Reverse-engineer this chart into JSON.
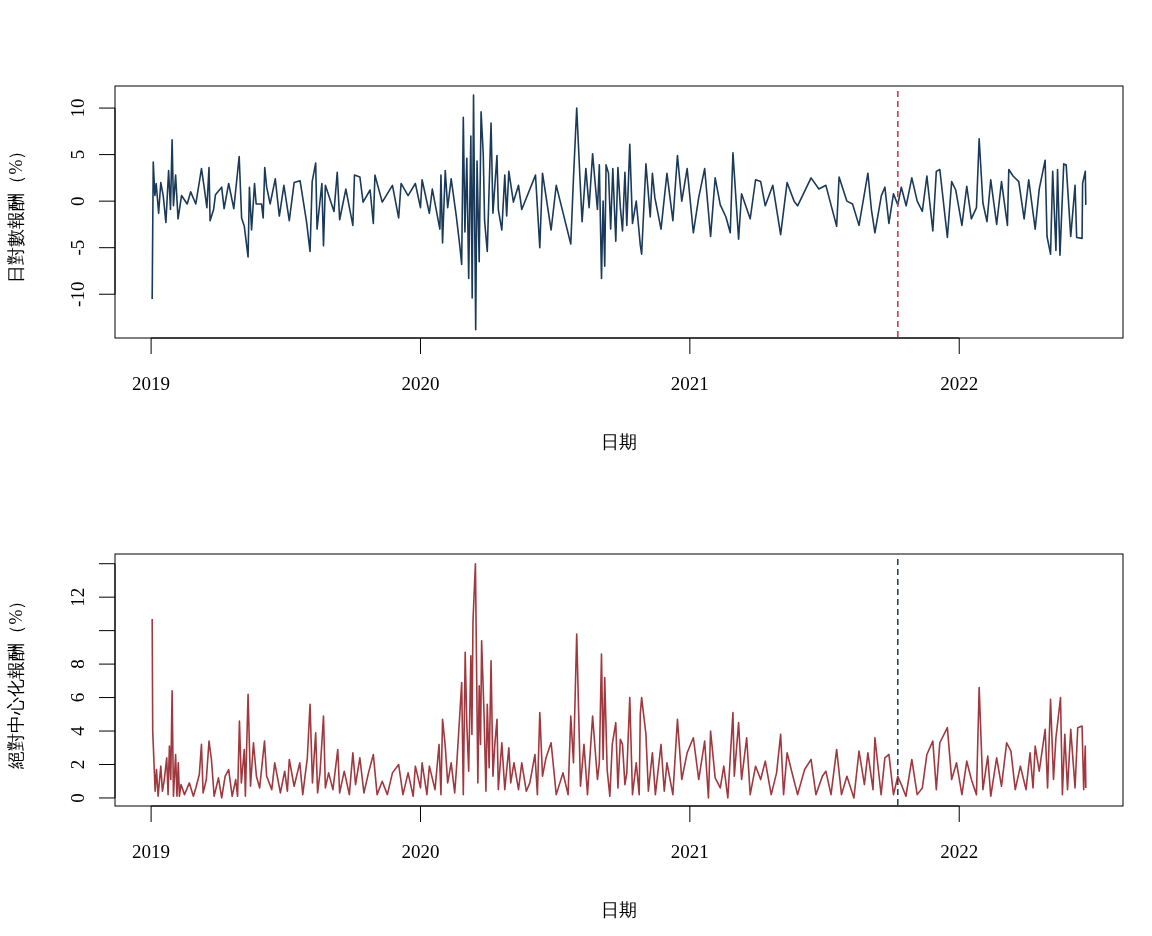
{
  "chart_data": [
    {
      "type": "line",
      "xlabel": "日期",
      "ylabel": "日對數報酬（%）",
      "xlim": [
        2018.866,
        2022.608
      ],
      "xticks": [
        2019,
        2020,
        2021,
        2022
      ],
      "ylim": [
        -14.7,
        12.37
      ],
      "yticks": [
        -10,
        -5,
        0,
        5,
        10
      ],
      "x": [
        2019.004,
        2019.008,
        2019.014,
        2019.019,
        2019.028,
        2019.036,
        2019.045,
        2019.055,
        2019.065,
        2019.072,
        2019.078,
        2019.083,
        2019.091,
        2019.1,
        2019.113,
        2019.134,
        2019.147,
        2019.166,
        2019.187,
        2019.198,
        2019.207,
        2019.215,
        2019.219,
        2019.232,
        2019.239,
        2019.262,
        2019.271,
        2019.288,
        2019.307,
        2019.327,
        2019.336,
        2019.346,
        2019.36,
        2019.365,
        2019.373,
        2019.384,
        2019.39,
        2019.41,
        2019.416,
        2019.422,
        2019.429,
        2019.442,
        2019.461,
        2019.476,
        2019.493,
        2019.513,
        2019.531,
        2019.553,
        2019.577,
        2019.59,
        2019.598,
        2019.611,
        2019.616,
        2019.634,
        2019.64,
        2019.647,
        2019.679,
        2019.691,
        2019.7,
        2019.723,
        2019.749,
        2019.755,
        2019.775,
        2019.787,
        2019.813,
        2019.825,
        2019.831,
        2019.858,
        2019.896,
        2019.919,
        2019.928,
        2019.954,
        2019.981,
        2020.0,
        2020.006,
        2020.033,
        2020.044,
        2020.072,
        2020.076,
        2020.082,
        2020.092,
        2020.101,
        2020.114,
        2020.133,
        2020.146,
        2020.153,
        2020.159,
        2020.165,
        2020.172,
        2020.179,
        2020.187,
        2020.192,
        2020.197,
        2020.205,
        2020.21,
        2020.218,
        2020.225,
        2020.233,
        2020.238,
        2020.248,
        2020.262,
        2020.269,
        2020.284,
        2020.289,
        2020.302,
        2020.313,
        2020.32,
        2020.328,
        2020.345,
        2020.364,
        2020.376,
        2020.427,
        2020.443,
        2020.453,
        2020.485,
        2020.504,
        2020.558,
        2020.568,
        2020.58,
        2020.594,
        2020.6,
        2020.614,
        2020.626,
        2020.639,
        2020.657,
        2020.664,
        2020.672,
        2020.678,
        2020.684,
        2020.689,
        2020.698,
        2020.706,
        2020.714,
        2020.725,
        2020.733,
        2020.742,
        2020.75,
        2020.759,
        2020.766,
        2020.777,
        2020.787,
        2020.801,
        2020.816,
        2020.821,
        2020.837,
        2020.853,
        2020.861,
        2020.87,
        2020.893,
        2020.915,
        2020.937,
        2020.954,
        2020.97,
        2020.99,
        2021.013,
        2021.033,
        2021.055,
        2021.077,
        2021.094,
        2021.113,
        2021.134,
        2021.15,
        2021.16,
        2021.181,
        2021.192,
        2021.224,
        2021.244,
        2021.263,
        2021.28,
        2021.308,
        2021.337,
        2021.361,
        2021.387,
        2021.4,
        2021.45,
        2021.479,
        2021.505,
        2021.524,
        2021.545,
        2021.554,
        2021.583,
        2021.604,
        2021.628,
        2021.661,
        2021.674,
        2021.687,
        2021.711,
        2021.724,
        2021.739,
        2021.756,
        2021.772,
        2021.785,
        2021.803,
        2021.824,
        2021.844,
        2021.863,
        2021.88,
        2021.902,
        2021.915,
        2021.928,
        2021.956,
        2021.972,
        2021.987,
        2022.01,
        2022.028,
        2022.045,
        2022.064,
        2022.074,
        2022.088,
        2022.103,
        2022.117,
        2022.139,
        2022.157,
        2022.179,
        2022.184,
        2022.2,
        2022.221,
        2022.241,
        2022.258,
        2022.282,
        2022.297,
        2022.319,
        2022.326,
        2022.339,
        2022.347,
        2022.359,
        2022.365,
        2022.374,
        2022.388,
        2022.397,
        2022.414,
        2022.43,
        2022.436,
        2022.456,
        2022.458,
        2022.468,
        2022.47
      ],
      "series": [
        {
          "color": "#1b3a5a",
          "values": [
            -10.5,
            4.2,
            0.6,
            1.9,
            -1.3,
            2.0,
            0.6,
            -2.3,
            3.3,
            -0.9,
            6.6,
            -0.5,
            2.8,
            -1.9,
            0.6,
            -0.3,
            1.0,
            -0.3,
            3.5,
            1.3,
            -0.7,
            3.6,
            -2.1,
            -0.9,
            0.7,
            1.5,
            -0.8,
            1.9,
            -0.8,
            4.8,
            -1.8,
            -2.7,
            -6.0,
            1.5,
            -3.1,
            1.9,
            -0.3,
            -0.3,
            -1.8,
            3.6,
            1.5,
            -0.3,
            2.4,
            -1.6,
            1.7,
            -2.1,
            2.0,
            2.2,
            -2.2,
            -5.4,
            2.1,
            4.1,
            -3.0,
            1.9,
            -4.8,
            1.7,
            -1.1,
            3.1,
            -2.0,
            1.3,
            -2.6,
            2.8,
            2.6,
            -0.1,
            1.2,
            -2.4,
            2.8,
            -0.1,
            1.7,
            -1.8,
            1.9,
            0.6,
            1.9,
            -0.7,
            2.3,
            -1.3,
            1.3,
            -3.0,
            2.8,
            -4.5,
            3.3,
            -0.7,
            2.4,
            -1.6,
            -4.8,
            -6.8,
            9.0,
            -3.3,
            4.6,
            -8.3,
            7.0,
            -10.4,
            11.4,
            -13.8,
            4.3,
            -6.5,
            9.6,
            5.1,
            -2.1,
            -5.4,
            8.4,
            -1.3,
            4.9,
            -0.9,
            -3.1,
            2.8,
            -1.6,
            3.2,
            -0.1,
            1.7,
            -0.9,
            2.8,
            -5.0,
            3.0,
            -3.1,
            1.7,
            -4.6,
            2.5,
            10.0,
            1.3,
            -2.2,
            3.5,
            -0.7,
            5.1,
            -0.9,
            3.9,
            -8.3,
            0.0,
            -7.0,
            3.9,
            3.0,
            -3.0,
            3.5,
            -4.3,
            3.6,
            -0.7,
            -3.2,
            3.1,
            -2.6,
            6.1,
            -2.4,
            0.0,
            -4.7,
            -5.7,
            4.0,
            -1.7,
            3.0,
            0.4,
            -3.0,
            3.0,
            -2.1,
            4.9,
            0.0,
            3.5,
            -3.4,
            0.4,
            3.5,
            -3.8,
            2.5,
            -0.4,
            -1.7,
            -3.4,
            5.2,
            -4.1,
            0.8,
            -1.9,
            2.3,
            2.1,
            -0.5,
            1.7,
            -3.6,
            2.0,
            0.0,
            -0.5,
            2.5,
            1.3,
            1.7,
            -0.4,
            -2.7,
            2.6,
            0.0,
            -0.3,
            -2.6,
            3.0,
            -0.9,
            -3.4,
            0.6,
            1.5,
            -2.4,
            0.8,
            -0.4,
            1.5,
            -0.5,
            2.5,
            0.0,
            -1.1,
            2.7,
            -3.2,
            3.2,
            3.4,
            -3.9,
            2.1,
            1.2,
            -2.6,
            1.6,
            -1.9,
            -0.7,
            6.7,
            -0.2,
            -2.2,
            2.3,
            -2.5,
            2.1,
            -2.6,
            3.4,
            2.7,
            2.1,
            -1.9,
            2.3,
            -3.0,
            1.3,
            4.4,
            -3.8,
            -5.7,
            3.2,
            -5.3,
            3.4,
            -5.8,
            4.0,
            3.9,
            -3.8,
            1.7,
            -3.9,
            -4.0,
            1.9,
            3.2,
            -0.4
          ]
        }
      ],
      "ref_lines": [
        {
          "axis": "x",
          "value": 2021.772,
          "color": "#c8313b",
          "line_style": "dashed"
        }
      ]
    },
    {
      "type": "line",
      "xlabel": "日期",
      "ylabel": "絕對中心化報酬（%）",
      "xlim": [
        2018.866,
        2022.608
      ],
      "xticks": [
        2019,
        2020,
        2021,
        2022
      ],
      "ylim": [
        -0.48,
        14.58
      ],
      "yticks": [
        0,
        2,
        4,
        6,
        8,
        {
          "value": 10,
          "label": null
        },
        12,
        {
          "value": 14,
          "label": null
        }
      ],
      "x": [
        2019.004,
        2019.006,
        2019.015,
        2019.02,
        2019.026,
        2019.036,
        2019.042,
        2019.049,
        2019.058,
        2019.063,
        2019.068,
        2019.073,
        2019.078,
        2019.083,
        2019.091,
        2019.096,
        2019.101,
        2019.105,
        2019.111,
        2019.124,
        2019.142,
        2019.157,
        2019.166,
        2019.179,
        2019.187,
        2019.193,
        2019.205,
        2019.215,
        2019.224,
        2019.234,
        2019.25,
        2019.262,
        2019.275,
        2019.288,
        2019.301,
        2019.314,
        2019.321,
        2019.328,
        2019.335,
        2019.346,
        2019.35,
        2019.36,
        2019.369,
        2019.38,
        2019.391,
        2019.403,
        2019.421,
        2019.429,
        2019.448,
        2019.459,
        2019.48,
        2019.496,
        2019.506,
        2019.513,
        2019.531,
        2019.552,
        2019.563,
        2019.58,
        2019.59,
        2019.599,
        2019.611,
        2019.618,
        2019.627,
        2019.64,
        2019.647,
        2019.659,
        2019.675,
        2019.693,
        2019.7,
        2019.717,
        2019.736,
        2019.749,
        2019.759,
        2019.775,
        2019.79,
        2019.807,
        2019.825,
        2019.839,
        2019.858,
        2019.877,
        2019.896,
        2019.919,
        2019.935,
        2019.954,
        2019.973,
        2019.981,
        2020.0,
        2020.006,
        2020.024,
        2020.033,
        2020.054,
        2020.069,
        2020.076,
        2020.082,
        2020.092,
        2020.101,
        2020.114,
        2020.127,
        2020.133,
        2020.146,
        2020.153,
        2020.159,
        2020.166,
        2020.172,
        2020.179,
        2020.187,
        2020.191,
        2020.195,
        2020.204,
        2020.213,
        2020.218,
        2020.223,
        2020.227,
        2020.236,
        2020.243,
        2020.248,
        2020.255,
        2020.262,
        2020.269,
        2020.276,
        2020.284,
        2020.289,
        2020.302,
        2020.313,
        2020.328,
        2020.335,
        2020.347,
        2020.364,
        2020.376,
        2020.393,
        2020.406,
        2020.425,
        2020.434,
        2020.443,
        2020.453,
        2020.466,
        2020.485,
        2020.504,
        2020.529,
        2020.548,
        2020.558,
        2020.568,
        2020.58,
        2020.594,
        2020.607,
        2020.62,
        2020.639,
        2020.657,
        2020.664,
        2020.672,
        2020.678,
        2020.684,
        2020.693,
        2020.703,
        2020.712,
        2020.725,
        2020.733,
        2020.742,
        2020.75,
        2020.759,
        2020.766,
        2020.777,
        2020.787,
        2020.801,
        2020.812,
        2020.816,
        2020.821,
        2020.837,
        2020.846,
        2020.861,
        2020.872,
        2020.893,
        2020.905,
        2020.915,
        2020.937,
        2020.954,
        2020.97,
        2020.99,
        2021.013,
        2021.033,
        2021.055,
        2021.069,
        2021.077,
        2021.094,
        2021.113,
        2021.126,
        2021.141,
        2021.16,
        2021.165,
        2021.181,
        2021.192,
        2021.211,
        2021.224,
        2021.244,
        2021.263,
        2021.28,
        2021.302,
        2021.322,
        2021.337,
        2021.348,
        2021.361,
        2021.381,
        2021.4,
        2021.426,
        2021.45,
        2021.468,
        2021.492,
        2021.505,
        2021.524,
        2021.545,
        2021.563,
        2021.583,
        2021.609,
        2021.628,
        2021.648,
        2021.661,
        2021.68,
        2021.687,
        2021.71,
        2021.724,
        2021.739,
        2021.756,
        2021.772,
        2021.785,
        2021.802,
        2021.824,
        2021.844,
        2021.863,
        2021.88,
        2021.902,
        2021.915,
        2021.928,
        2021.956,
        2021.972,
        2021.99,
        2022.01,
        2022.028,
        2022.045,
        2022.064,
        2022.074,
        2022.088,
        2022.106,
        2022.117,
        2022.139,
        2022.157,
        2022.176,
        2022.192,
        2022.208,
        2022.227,
        2022.248,
        2022.263,
        2022.274,
        2022.282,
        2022.297,
        2022.319,
        2022.328,
        2022.339,
        2022.35,
        2022.359,
        2022.376,
        2022.383,
        2022.392,
        2022.402,
        2022.414,
        2022.43,
        2022.44,
        2022.456,
        2022.462,
        2022.468,
        2022.47
      ],
      "series": [
        {
          "color": "#a0393f",
          "values": [
            10.7,
            4.0,
            0.4,
            1.7,
            0.1,
            1.9,
            0.4,
            1.1,
            2.4,
            0.2,
            3.1,
            1.1,
            6.4,
            0.1,
            2.6,
            0.1,
            2.1,
            0.1,
            0.8,
            0.2,
            0.9,
            0.1,
            0.6,
            1.4,
            3.2,
            0.3,
            1.1,
            3.4,
            2.3,
            0.1,
            1.2,
            0.0,
            1.3,
            1.7,
            0.1,
            1.1,
            0.1,
            4.6,
            0.9,
            2.9,
            0.1,
            6.2,
            0.7,
            3.3,
            1.3,
            0.6,
            3.4,
            1.3,
            0.5,
            2.1,
            0.3,
            1.6,
            0.4,
            2.3,
            0.7,
            2.1,
            0.2,
            2.4,
            5.6,
            0.9,
            3.9,
            0.3,
            1.5,
            4.9,
            0.6,
            1.5,
            0.5,
            2.9,
            0.3,
            1.6,
            0.2,
            2.7,
            0.8,
            2.4,
            0.3,
            1.5,
            2.6,
            0.2,
            1.0,
            0.2,
            1.5,
            2.0,
            0.2,
            1.5,
            0.1,
            1.9,
            0.6,
            2.1,
            0.2,
            1.9,
            0.5,
            3.2,
            0.2,
            4.7,
            3.1,
            0.9,
            2.1,
            0.3,
            1.6,
            5.0,
            6.9,
            0.2,
            8.7,
            4.4,
            1.6,
            8.5,
            3.8,
            10.6,
            14.0,
            0.9,
            6.7,
            3.2,
            9.4,
            5.0,
            0.4,
            5.6,
            1.8,
            8.2,
            1.3,
            3.2,
            4.7,
            0.5,
            3.3,
            0.5,
            3.0,
            0.9,
            2.1,
            0.5,
            2.1,
            0.4,
            0.9,
            2.6,
            0.2,
            5.1,
            1.3,
            2.4,
            3.3,
            0.2,
            1.5,
            0.2,
            4.9,
            2.1,
            9.8,
            0.7,
            3.2,
            0.2,
            4.9,
            1.1,
            2.1,
            8.6,
            2.3,
            7.2,
            1.7,
            0.1,
            3.2,
            4.5,
            0.6,
            3.5,
            3.2,
            0.8,
            1.5,
            6.0,
            0.2,
            2.1,
            0.2,
            5.0,
            6.0,
            3.8,
            0.4,
            2.7,
            0.2,
            3.2,
            0.4,
            2.1,
            0.2,
            4.7,
            1.1,
            2.7,
            3.6,
            1.1,
            3.4,
            0.0,
            4.0,
            1.2,
            0.6,
            1.9,
            0.0,
            5.1,
            1.3,
            4.5,
            1.1,
            3.6,
            0.2,
            1.9,
            1.1,
            2.2,
            0.2,
            1.5,
            3.8,
            0.2,
            2.7,
            1.4,
            0.2,
            1.7,
            2.3,
            0.2,
            1.3,
            1.6,
            0.2,
            2.9,
            0.2,
            1.3,
            0.0,
            2.8,
            0.8,
            2.7,
            0.5,
            3.6,
            0.2,
            2.4,
            2.6,
            0.2,
            1.3,
            0.8,
            0.1,
            2.3,
            0.2,
            0.6,
            2.6,
            3.4,
            0.5,
            3.3,
            4.2,
            1.1,
            2.1,
            0.2,
            2.2,
            1.1,
            0.2,
            6.6,
            0.5,
            2.5,
            0.1,
            2.4,
            0.7,
            3.3,
            2.8,
            0.5,
            1.9,
            0.5,
            2.7,
            0.6,
            3.1,
            1.6,
            4.1,
            0.6,
            5.9,
            1.1,
            3.6,
            6.0,
            0.2,
            3.8,
            0.5,
            4.1,
            0.6,
            4.2,
            4.3,
            0.5,
            3.1,
            0.6
          ]
        }
      ],
      "ref_lines": [
        {
          "axis": "x",
          "value": 2021.772,
          "color": "#1b3a5a",
          "line_style": "dashed"
        }
      ]
    }
  ]
}
